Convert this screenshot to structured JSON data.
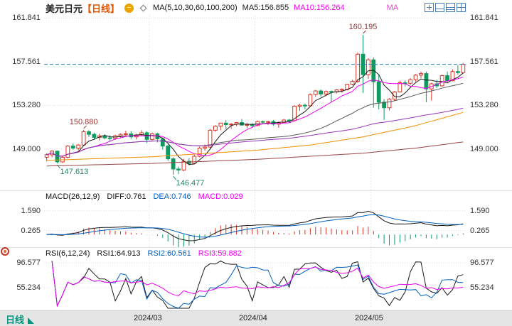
{
  "header": {
    "symbol": "美元日元",
    "period_tag": "【日线】",
    "collapse_glyph": "−",
    "ma_settings": "MA(5,10,30,60,100,200)",
    "ma5_label": "MA5:156.855",
    "ma10_label": "MA10:156.264",
    "ma_truncated": "MA"
  },
  "footer": {
    "tab_label": "日线"
  },
  "axis": {
    "main_labels": [
      "161.841",
      "157.561",
      "153.280",
      "149.000"
    ],
    "macd_labels": [
      "1.590",
      "0.265"
    ],
    "rsi_labels": [
      "96.577",
      "55.234"
    ],
    "month_ticks": [
      {
        "index": 20,
        "label": "2024/03"
      },
      {
        "index": 40,
        "label": "2024/04"
      },
      {
        "index": 62,
        "label": "2024/05"
      }
    ]
  },
  "macd_header": {
    "title": "MACD(26,12,9)",
    "diff": "DIFF:0.761",
    "dea": "DEA:0.746",
    "macd": "MACD:0.029"
  },
  "rsi_header": {
    "title": "RSI(6,12,24)",
    "rsi1": "RSI1:64.913",
    "rsi2": "RSI2:60.561",
    "rsi3": "RSI3:59.882"
  },
  "colors": {
    "up": "#dd3322",
    "down": "#0f9b5f",
    "ma": {
      "5": "#1a1a1a",
      "10": "#ee00ee",
      "30": "#5a5a5a",
      "60": "#9933bb",
      "100": "#f09000",
      "200": "#994444"
    },
    "diff": "#1a1a1a",
    "dea": "#0060c0",
    "rsi": {
      "6": "#1a1a1a",
      "12": "#0060c0",
      "24": "#ee00ee"
    },
    "last_price_line": "#3388bb",
    "grid": "#dcdcdc",
    "month_grid": "#e8e8e8",
    "ann_high": "#9e3333",
    "ann_low": "#1f8a5f"
  },
  "chart_data": {
    "type": "candlestick+indicators",
    "symbol": "USD/JPY (美元日元)",
    "period": "daily",
    "legend": [
      "MA5",
      "MA10",
      "MA30",
      "MA60",
      "MA100",
      "MA200"
    ],
    "main": {
      "ylim": [
        144.96,
        162.08
      ],
      "grid_values": [
        161.841,
        157.561,
        153.28,
        149.0
      ],
      "last_price": 157.3,
      "ma_windows": [
        5,
        10,
        30,
        60
      ],
      "ma100_anchors": [
        [
          0,
          147.9
        ],
        [
          20,
          148.25
        ],
        [
          40,
          148.9
        ],
        [
          50,
          149.4
        ],
        [
          60,
          150.2
        ],
        [
          70,
          151.3
        ],
        [
          79,
          152.6
        ]
      ],
      "ma200_anchors": [
        [
          0,
          147.35
        ],
        [
          20,
          147.6
        ],
        [
          40,
          148.0
        ],
        [
          60,
          148.6
        ],
        [
          70,
          149.1
        ],
        [
          79,
          149.7
        ]
      ],
      "annotations": [
        {
          "index": 60,
          "value": 160.195,
          "label": "160.195",
          "type": "high"
        },
        {
          "index": 7,
          "value": 150.88,
          "label": "150.880",
          "type": "high"
        },
        {
          "index": 2,
          "value": 147.613,
          "label": "147.613",
          "type": "low"
        },
        {
          "index": 24,
          "value": 146.477,
          "label": "146.477",
          "type": "low"
        }
      ],
      "candles": [
        [
          148.2,
          148.6,
          147.8,
          148.45
        ],
        [
          148.45,
          148.9,
          148.2,
          148.8
        ],
        [
          148.8,
          148.85,
          147.61,
          147.75
        ],
        [
          147.75,
          148.3,
          147.65,
          148.2
        ],
        [
          148.2,
          149.4,
          148.1,
          149.3
        ],
        [
          149.3,
          149.55,
          148.95,
          149.1
        ],
        [
          149.1,
          149.5,
          148.9,
          149.4
        ],
        [
          149.4,
          150.88,
          149.3,
          150.7
        ],
        [
          150.7,
          150.85,
          150.2,
          150.45
        ],
        [
          150.45,
          150.6,
          149.9,
          150.15
        ],
        [
          150.15,
          150.5,
          149.85,
          150.3
        ],
        [
          150.3,
          150.45,
          149.95,
          150.1
        ],
        [
          150.1,
          150.35,
          149.8,
          150.05
        ],
        [
          150.05,
          150.4,
          149.9,
          150.3
        ],
        [
          150.3,
          150.55,
          150.1,
          150.45
        ],
        [
          150.45,
          150.8,
          150.3,
          150.5
        ],
        [
          150.5,
          150.75,
          150.0,
          150.2
        ],
        [
          150.2,
          150.5,
          149.95,
          150.4
        ],
        [
          150.4,
          150.85,
          150.3,
          150.6
        ],
        [
          150.6,
          150.75,
          149.6,
          149.95
        ],
        [
          149.95,
          150.6,
          149.85,
          150.5
        ],
        [
          150.5,
          150.6,
          149.65,
          150.0
        ],
        [
          150.0,
          150.1,
          148.95,
          149.3
        ],
        [
          149.3,
          149.45,
          147.85,
          148.05
        ],
        [
          148.05,
          148.2,
          146.48,
          147.05
        ],
        [
          147.05,
          147.3,
          146.55,
          146.95
        ],
        [
          146.95,
          148.05,
          146.85,
          147.8
        ],
        [
          147.8,
          148.1,
          147.4,
          147.6
        ],
        [
          147.6,
          148.45,
          147.5,
          148.3
        ],
        [
          148.3,
          149.25,
          148.2,
          149.1
        ],
        [
          149.1,
          149.45,
          148.85,
          149.2
        ],
        [
          149.2,
          150.95,
          149.05,
          150.85
        ],
        [
          150.85,
          151.35,
          150.7,
          151.25
        ],
        [
          151.25,
          151.6,
          150.85,
          151.55
        ],
        [
          151.55,
          151.85,
          150.95,
          151.4
        ],
        [
          151.4,
          151.55,
          151.0,
          151.45
        ],
        [
          151.45,
          151.65,
          151.25,
          151.6
        ],
        [
          151.6,
          151.95,
          151.3,
          151.35
        ],
        [
          151.35,
          151.55,
          151.05,
          151.4
        ],
        [
          151.4,
          151.55,
          151.15,
          151.3
        ],
        [
          151.3,
          151.8,
          151.25,
          151.7
        ],
        [
          151.7,
          151.8,
          151.45,
          151.65
        ],
        [
          151.65,
          151.75,
          151.35,
          151.7
        ],
        [
          151.7,
          151.85,
          151.3,
          151.45
        ],
        [
          151.45,
          151.7,
          151.1,
          151.6
        ],
        [
          151.6,
          151.95,
          151.55,
          151.85
        ],
        [
          151.85,
          151.95,
          151.6,
          151.8
        ],
        [
          151.8,
          153.3,
          151.7,
          153.2
        ],
        [
          153.2,
          153.45,
          152.75,
          153.3
        ],
        [
          153.3,
          153.45,
          152.9,
          153.25
        ],
        [
          153.25,
          154.45,
          153.2,
          154.35
        ],
        [
          154.35,
          154.8,
          154.15,
          154.7
        ],
        [
          154.7,
          154.85,
          154.15,
          154.4
        ],
        [
          154.4,
          154.75,
          154.2,
          154.65
        ],
        [
          154.65,
          154.75,
          153.6,
          154.6
        ],
        [
          154.6,
          154.9,
          154.45,
          154.8
        ],
        [
          154.8,
          154.95,
          154.55,
          154.85
        ],
        [
          154.85,
          155.4,
          154.75,
          155.35
        ],
        [
          155.35,
          155.8,
          155.25,
          155.65
        ],
        [
          155.65,
          158.45,
          155.5,
          158.3
        ],
        [
          158.3,
          160.195,
          154.5,
          156.3
        ],
        [
          156.3,
          157.9,
          155.9,
          157.75
        ],
        [
          157.75,
          158.0,
          153.05,
          155.6
        ],
        [
          155.6,
          156.3,
          152.9,
          153.6
        ],
        [
          153.6,
          153.9,
          151.86,
          153.05
        ],
        [
          153.05,
          154.0,
          152.8,
          153.9
        ],
        [
          153.9,
          154.7,
          153.75,
          154.6
        ],
        [
          154.6,
          155.7,
          154.55,
          155.5
        ],
        [
          155.5,
          155.75,
          155.15,
          155.45
        ],
        [
          155.45,
          155.95,
          155.3,
          155.8
        ],
        [
          155.8,
          156.35,
          155.6,
          156.25
        ],
        [
          156.25,
          156.6,
          155.95,
          156.4
        ],
        [
          156.4,
          156.6,
          153.6,
          154.9
        ],
        [
          154.9,
          155.5,
          153.75,
          155.4
        ],
        [
          155.4,
          155.8,
          155.0,
          155.2
        ],
        [
          155.2,
          156.3,
          155.1,
          156.2
        ],
        [
          156.2,
          156.6,
          155.55,
          155.7
        ],
        [
          155.7,
          156.8,
          155.65,
          156.6
        ],
        [
          156.6,
          157.2,
          156.3,
          156.5
        ],
        [
          156.5,
          157.45,
          156.4,
          157.3
        ]
      ]
    },
    "macd": {
      "params": [
        26,
        12,
        9
      ],
      "ylim": [
        -0.85,
        2.3
      ],
      "grid_values": [
        1.59,
        0.265
      ],
      "diff": 0.761,
      "dea": 0.746,
      "macd": 0.029
    },
    "rsi": {
      "params": [
        6,
        12,
        24
      ],
      "ylim": [
        21,
        104
      ],
      "grid_values": [
        96.577,
        55.234
      ],
      "rsi1": 64.913,
      "rsi2": 60.561,
      "rsi3": 59.882
    }
  }
}
